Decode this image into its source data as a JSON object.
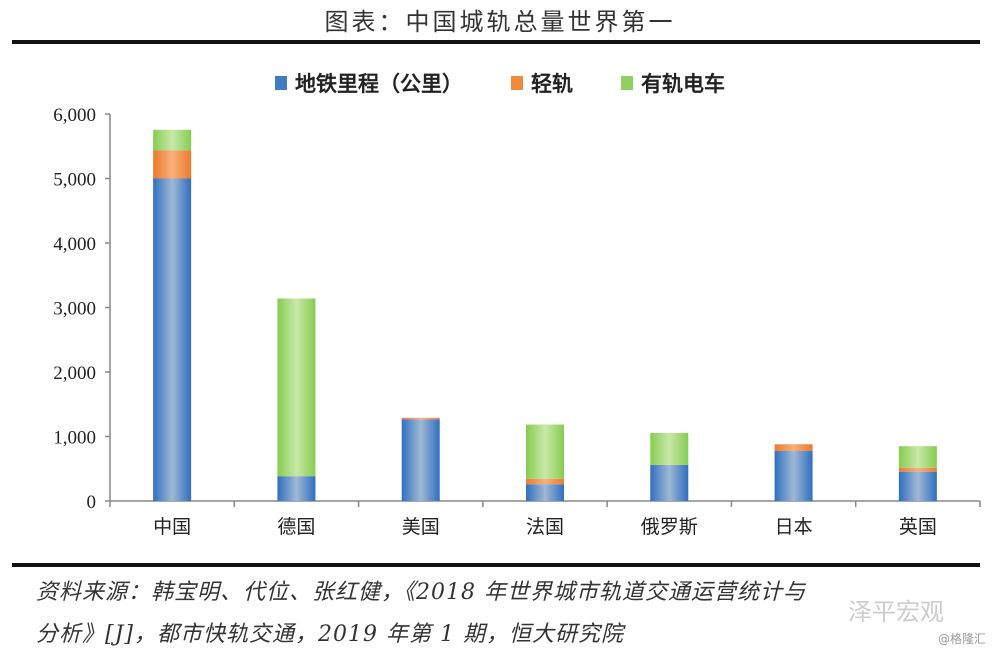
{
  "chart_data": {
    "type": "bar",
    "stacked": true,
    "title": "图表：中国城轨总量世界第一",
    "xlabel": "",
    "ylabel": "",
    "ylim": [
      0,
      6000
    ],
    "yticks": [
      0,
      1000,
      2000,
      3000,
      4000,
      5000,
      6000
    ],
    "ytick_labels": [
      "0",
      "1,000",
      "2,000",
      "3,000",
      "4,000",
      "5,000",
      "6,000"
    ],
    "categories": [
      "中国",
      "德国",
      "美国",
      "法国",
      "俄罗斯",
      "日本",
      "英国"
    ],
    "legend_position": "top",
    "series": [
      {
        "name": "地铁里程（公里）",
        "color": "#3f7cc4",
        "values": [
          5000,
          385,
          1265,
          260,
          560,
          775,
          455
        ]
      },
      {
        "name": "轻轨",
        "color": "#f08a3c",
        "values": [
          435,
          0,
          25,
          85,
          0,
          105,
          60
        ]
      },
      {
        "name": "有轨电车",
        "color": "#8fd160",
        "values": [
          320,
          2755,
          0,
          840,
          495,
          0,
          335
        ]
      }
    ]
  },
  "source_line1": "资料来源：韩宝明、代位、张红健，《2018 年世界城市轨道交通运营统计与",
  "source_line2": "分析》[J]，都市快轨交通，2019 年第 1 期，恒大研究院",
  "watermark": "泽平宏观",
  "watermark2": "@格隆汇"
}
